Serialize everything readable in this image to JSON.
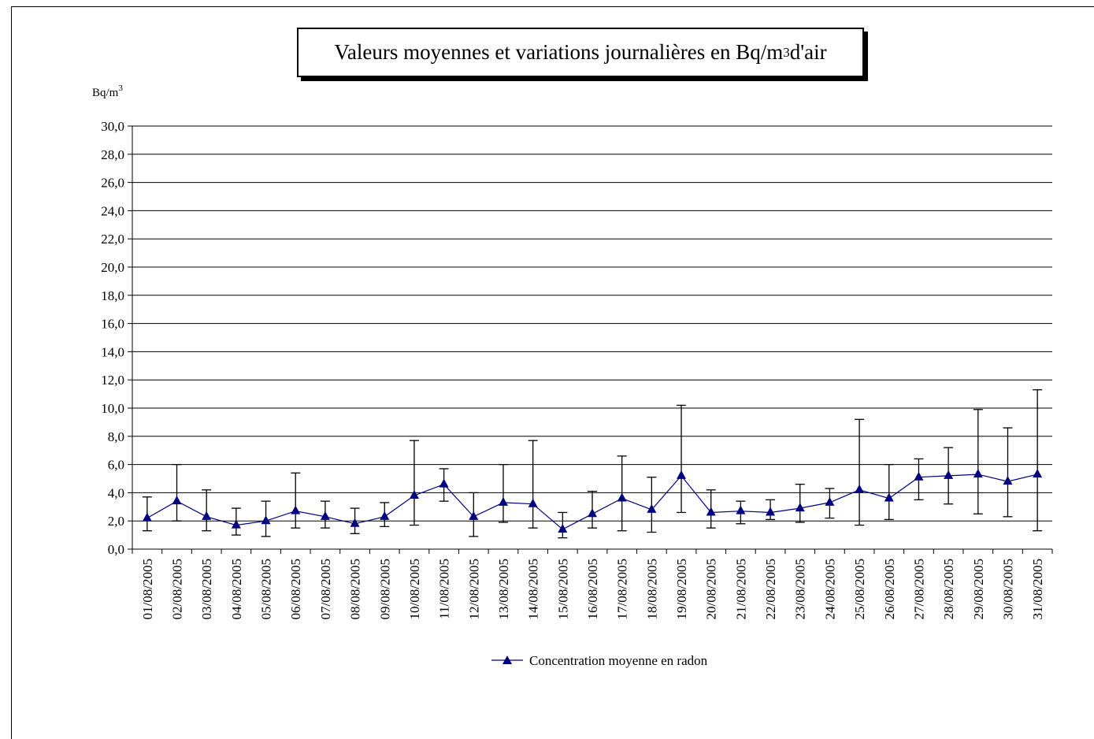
{
  "chart_data": {
    "type": "line",
    "title": {
      "prefix": "Valeurs moyennes et variations journalières en Bq/m",
      "superscript": "3",
      "suffix": " d'air"
    },
    "ylabel": {
      "base": "Bq/m",
      "superscript": "3"
    },
    "ylim": [
      0,
      30
    ],
    "ytick_step": 2,
    "ytick_labels": [
      "0,0",
      "2,0",
      "4,0",
      "6,0",
      "8,0",
      "10,0",
      "12,0",
      "14,0",
      "16,0",
      "18,0",
      "20,0",
      "22,0",
      "24,0",
      "26,0",
      "28,0",
      "30,0"
    ],
    "grid": "horizontal",
    "legend_position": "bottom",
    "categories": [
      "01/08/2005",
      "02/08/2005",
      "03/08/2005",
      "04/08/2005",
      "05/08/2005",
      "06/08/2005",
      "07/08/2005",
      "08/08/2005",
      "09/08/2005",
      "10/08/2005",
      "11/08/2005",
      "12/08/2005",
      "13/08/2005",
      "14/08/2005",
      "15/08/2005",
      "16/08/2005",
      "17/08/2005",
      "18/08/2005",
      "19/08/2005",
      "20/08/2005",
      "21/08/2005",
      "22/08/2005",
      "23/08/2005",
      "24/08/2005",
      "25/08/2005",
      "26/08/2005",
      "27/08/2005",
      "28/08/2005",
      "29/08/2005",
      "30/08/2005",
      "31/08/2005"
    ],
    "series": [
      {
        "name": "Concentration moyenne en radon",
        "color": "#000080",
        "marker": "triangle",
        "values": [
          2.2,
          3.4,
          2.3,
          1.7,
          2.0,
          2.7,
          2.3,
          1.8,
          2.3,
          3.8,
          4.6,
          2.3,
          3.3,
          3.2,
          1.4,
          2.5,
          3.6,
          2.8,
          5.2,
          2.6,
          2.7,
          2.6,
          2.9,
          3.3,
          4.2,
          3.6,
          5.1,
          5.2,
          5.3,
          4.8,
          5.3
        ],
        "error_high": [
          3.7,
          6.0,
          4.2,
          2.9,
          3.4,
          5.4,
          3.4,
          2.9,
          3.3,
          7.7,
          5.7,
          4.0,
          6.0,
          7.7,
          2.6,
          4.1,
          6.6,
          5.1,
          10.2,
          4.2,
          3.4,
          3.5,
          4.6,
          4.3,
          9.2,
          6.0,
          6.4,
          7.2,
          9.9,
          8.6,
          11.3
        ],
        "error_low": [
          1.3,
          2.0,
          1.3,
          1.0,
          0.9,
          1.5,
          1.5,
          1.1,
          1.6,
          1.7,
          3.4,
          0.9,
          1.9,
          1.5,
          0.8,
          1.5,
          1.3,
          1.2,
          2.6,
          1.5,
          1.8,
          2.1,
          1.9,
          2.2,
          1.7,
          2.1,
          3.5,
          3.2,
          2.5,
          2.3,
          1.3
        ]
      }
    ]
  }
}
